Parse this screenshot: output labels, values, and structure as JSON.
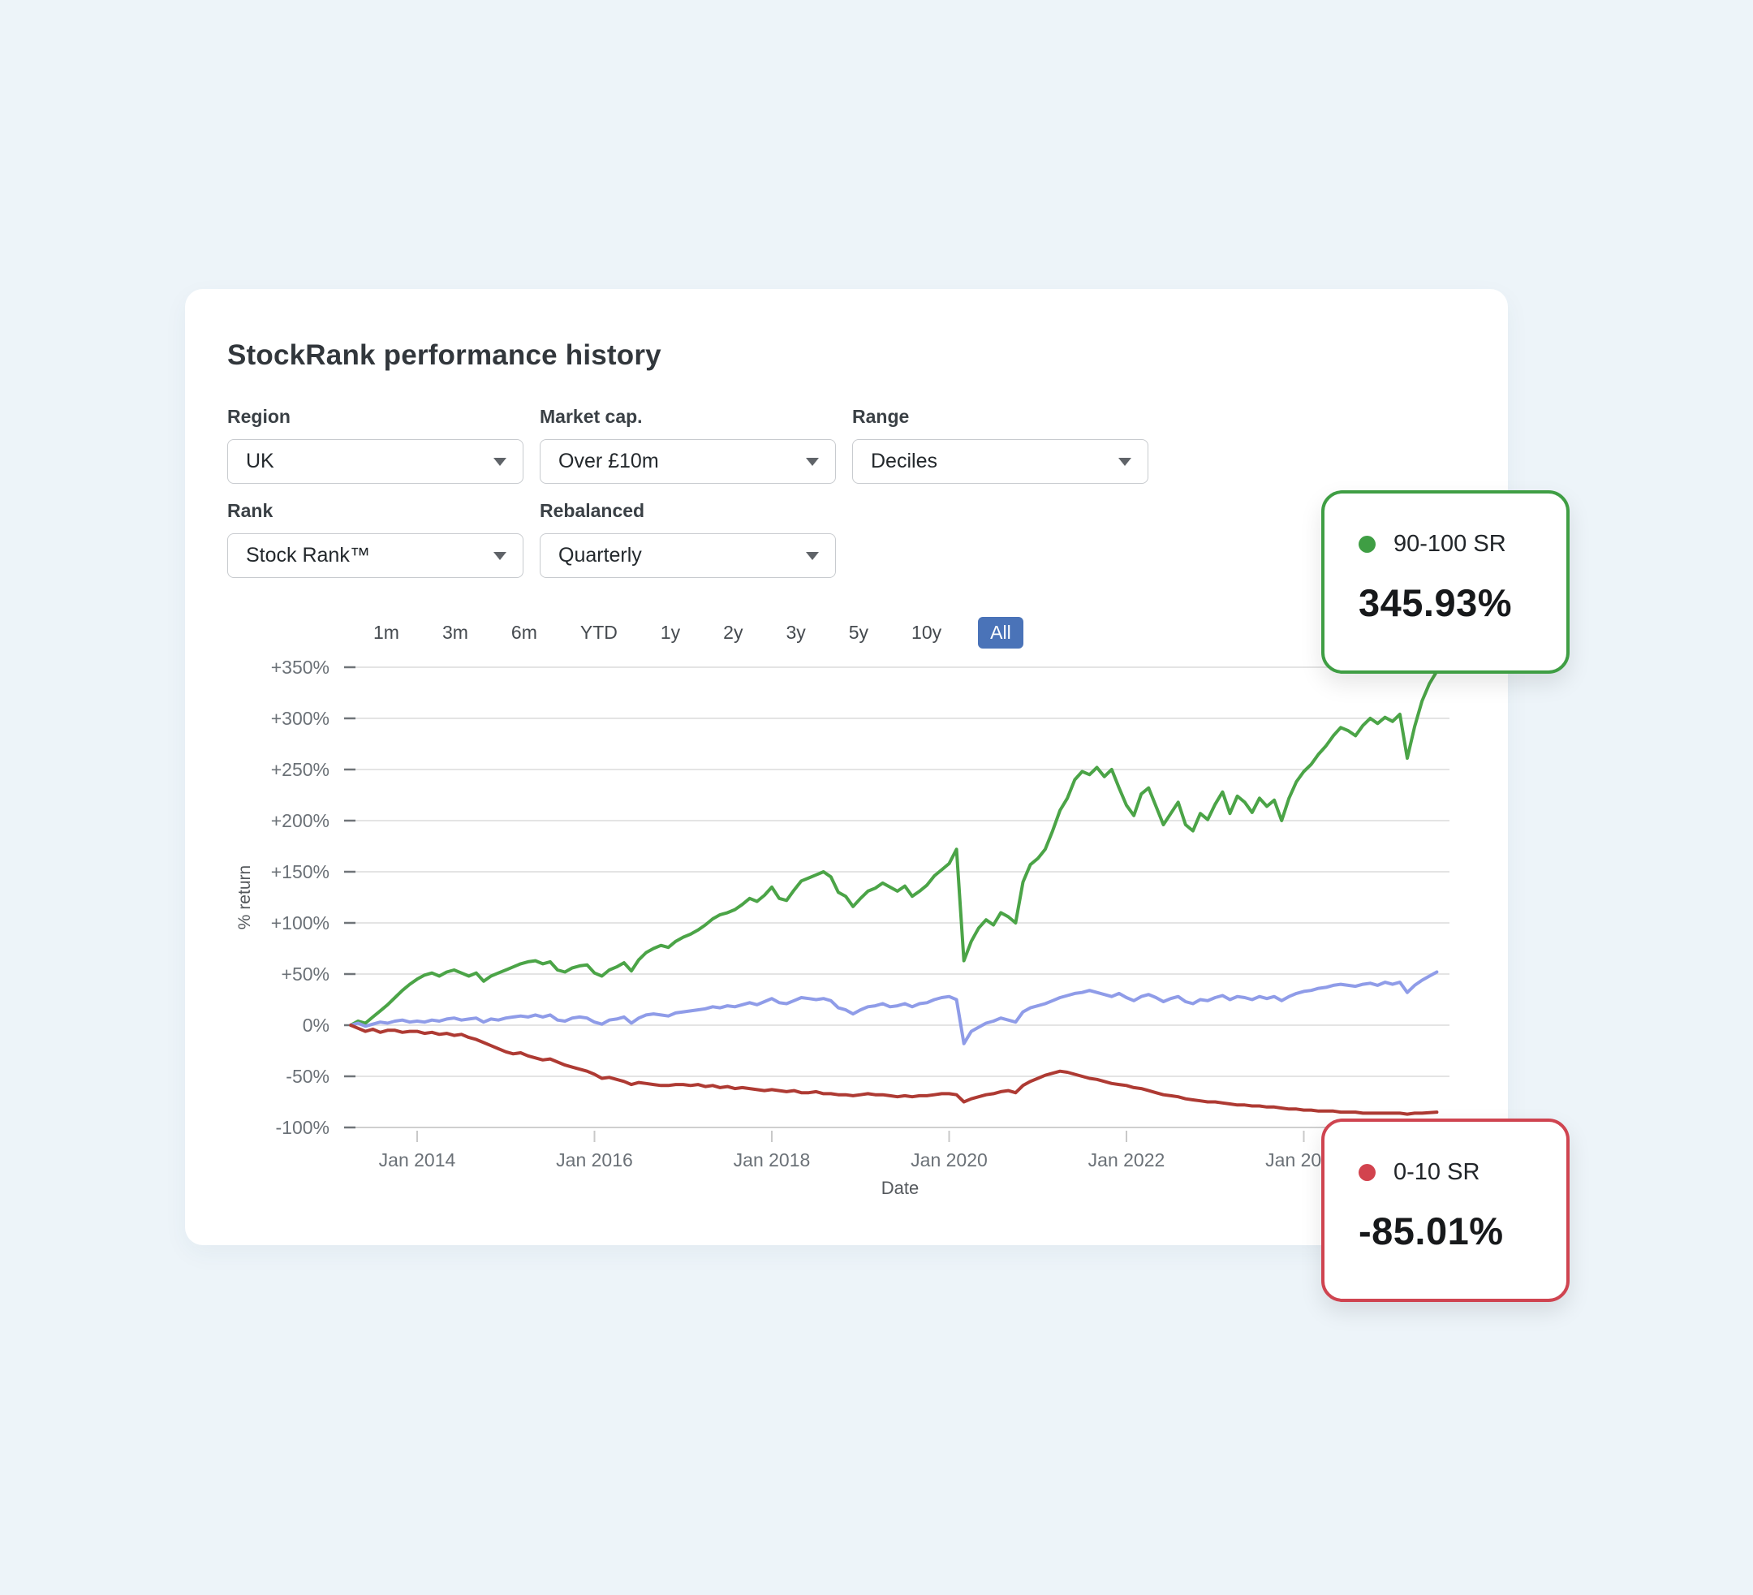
{
  "page": {
    "title": "StockRank performance history"
  },
  "filters": {
    "region": {
      "label": "Region",
      "value": "UK"
    },
    "market_cap": {
      "label": "Market cap.",
      "value": "Over £10m"
    },
    "range": {
      "label": "Range",
      "value": "Deciles"
    },
    "rank": {
      "label": "Rank",
      "value": "Stock Rank™"
    },
    "rebalanced": {
      "label": "Rebalanced",
      "value": "Quarterly"
    }
  },
  "range_buttons": {
    "options": [
      "1m",
      "3m",
      "6m",
      "YTD",
      "1y",
      "2y",
      "3y",
      "5y",
      "10y",
      "All"
    ],
    "selected": "All"
  },
  "callouts": {
    "top": {
      "label": "90-100 SR",
      "value": "345.93%",
      "color": "#3f9e44"
    },
    "bottom": {
      "label": "0-10 SR",
      "value": "-85.01%",
      "color": "#cf4450"
    }
  },
  "chart_data": {
    "type": "line",
    "title": "",
    "xlabel": "Date",
    "ylabel": "% return",
    "x_start_month": "2013-04",
    "x_interval": "monthly",
    "x_tick_labels": [
      "Jan 2014",
      "Jan 2016",
      "Jan 2018",
      "Jan 2020",
      "Jan 2022",
      "Jan 2024"
    ],
    "y_tick_labels": [
      "+350%",
      "+300%",
      "+250%",
      "+200%",
      "+150%",
      "+100%",
      "+50%",
      "0%",
      "-50%",
      "-100%"
    ],
    "y_ticks": [
      350,
      300,
      250,
      200,
      150,
      100,
      50,
      0,
      -50,
      -100
    ],
    "ylim": [
      -100,
      350
    ],
    "grid": true,
    "legend_position": "floating-callouts",
    "series": [
      {
        "name": "90-100 SR",
        "color": "#4ba447",
        "end_value": 345.93,
        "values": [
          0,
          4,
          2,
          8,
          14,
          20,
          27,
          34,
          40,
          45,
          49,
          51,
          48,
          52,
          54,
          51,
          48,
          51,
          43,
          48,
          51,
          54,
          57,
          60,
          62,
          63,
          60,
          62,
          54,
          52,
          56,
          58,
          59,
          51,
          48,
          54,
          57,
          61,
          53,
          64,
          71,
          75,
          78,
          76,
          82,
          86,
          89,
          93,
          98,
          104,
          108,
          110,
          113,
          118,
          124,
          121,
          127,
          135,
          124,
          122,
          132,
          141,
          144,
          147,
          150,
          145,
          130,
          126,
          116,
          124,
          131,
          134,
          139,
          135,
          131,
          136,
          126,
          131,
          137,
          146,
          152,
          158,
          172,
          63,
          82,
          95,
          103,
          98,
          110,
          106,
          100,
          140,
          157,
          163,
          172,
          190,
          210,
          222,
          240,
          248,
          245,
          252,
          243,
          250,
          232,
          215,
          205,
          226,
          232,
          214,
          196,
          207,
          218,
          196,
          190,
          207,
          201,
          216,
          228,
          207,
          224,
          218,
          208,
          222,
          214,
          220,
          200,
          222,
          238,
          248,
          255,
          265,
          273,
          283,
          291,
          288,
          283,
          293,
          300,
          295,
          301,
          297,
          304,
          261,
          292,
          317,
          334,
          345.93
        ]
      },
      {
        "name": "",
        "color": "#8f9ce8",
        "end_value": 52,
        "values": [
          0,
          2,
          -1,
          1,
          3,
          2,
          4,
          5,
          3,
          4,
          3,
          5,
          4,
          6,
          7,
          5,
          6,
          7,
          3,
          6,
          5,
          7,
          8,
          9,
          8,
          10,
          8,
          10,
          5,
          4,
          7,
          8,
          7,
          3,
          1,
          5,
          6,
          8,
          2,
          7,
          10,
          11,
          10,
          9,
          12,
          13,
          14,
          15,
          16,
          18,
          17,
          19,
          18,
          20,
          22,
          20,
          23,
          26,
          22,
          21,
          24,
          27,
          26,
          25,
          26,
          24,
          17,
          15,
          11,
          15,
          18,
          19,
          21,
          18,
          19,
          21,
          18,
          21,
          22,
          25,
          27,
          28,
          25,
          -18,
          -6,
          -2,
          2,
          4,
          7,
          5,
          3,
          13,
          17,
          19,
          21,
          24,
          27,
          29,
          31,
          32,
          34,
          32,
          30,
          28,
          31,
          27,
          24,
          28,
          30,
          27,
          23,
          26,
          28,
          23,
          21,
          25,
          24,
          27,
          29,
          25,
          28,
          27,
          25,
          28,
          26,
          28,
          24,
          28,
          31,
          33,
          34,
          36,
          37,
          39,
          40,
          39,
          38,
          40,
          41,
          39,
          42,
          40,
          42,
          32,
          39,
          44,
          48,
          52
        ]
      },
      {
        "name": "0-10 SR",
        "color": "#ae3a33",
        "end_value": -85.01,
        "values": [
          0,
          -3,
          -6,
          -4,
          -7,
          -5,
          -5,
          -7,
          -6,
          -6,
          -8,
          -7,
          -9,
          -8,
          -10,
          -9,
          -12,
          -14,
          -17,
          -20,
          -23,
          -26,
          -28,
          -27,
          -30,
          -32,
          -34,
          -33,
          -36,
          -39,
          -41,
          -43,
          -45,
          -48,
          -52,
          -51,
          -53,
          -55,
          -58,
          -56,
          -57,
          -58,
          -59,
          -59,
          -58,
          -58,
          -59,
          -58,
          -60,
          -59,
          -61,
          -60,
          -62,
          -61,
          -62,
          -63,
          -64,
          -63,
          -64,
          -65,
          -64,
          -66,
          -66,
          -65,
          -67,
          -67,
          -68,
          -68,
          -69,
          -68,
          -67,
          -68,
          -68,
          -69,
          -70,
          -69,
          -70,
          -69,
          -69,
          -68,
          -67,
          -67,
          -68,
          -75,
          -72,
          -70,
          -68,
          -67,
          -65,
          -64,
          -66,
          -59,
          -55,
          -52,
          -49,
          -47,
          -45,
          -46,
          -48,
          -50,
          -52,
          -53,
          -55,
          -57,
          -58,
          -59,
          -61,
          -62,
          -64,
          -66,
          -68,
          -69,
          -70,
          -72,
          -73,
          -74,
          -75,
          -75,
          -76,
          -77,
          -78,
          -78,
          -79,
          -79,
          -80,
          -80,
          -81,
          -82,
          -82,
          -83,
          -83,
          -84,
          -84,
          -84,
          -85,
          -85,
          -85,
          -86,
          -86,
          -86,
          -86,
          -86,
          -86,
          -87,
          -86,
          -86,
          -85.5,
          -85.01
        ]
      }
    ]
  }
}
